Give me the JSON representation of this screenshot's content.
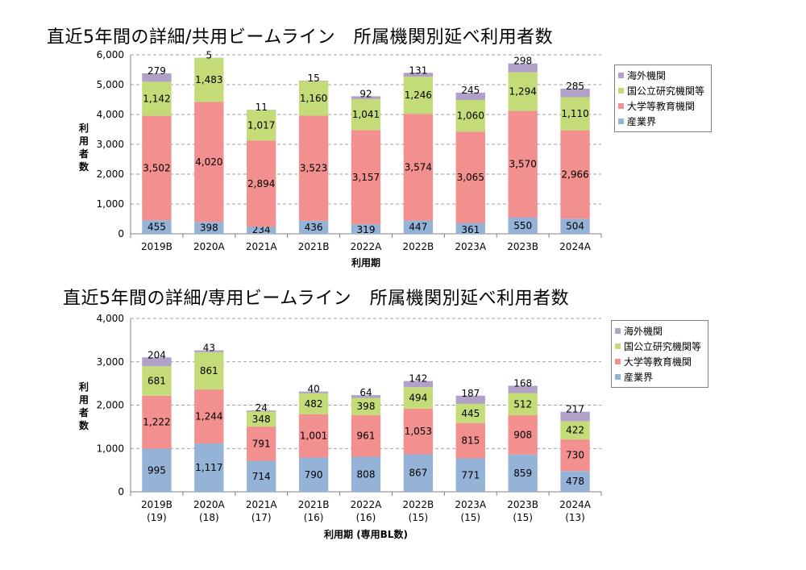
{
  "titles": [
    "直近5年間の詳細/共用ビームライン　所属機関別延べ利用者数",
    "直近5年間の詳細/専用ビームライン　所属機関別延べ利用者数"
  ],
  "colors": {
    "industry": "#95b3d7",
    "university": "#f28f8f",
    "national": "#c3dc78",
    "overseas": "#b1a0c7",
    "grid": "#808080"
  },
  "chart_data": [
    {
      "type": "bar",
      "stacked": true,
      "title": "直近5年間の詳細/共用ビームライン　所属機関別延べ利用者数",
      "xlabel": "利用期",
      "ylabel": "利用者数",
      "ylim": [
        0,
        6000
      ],
      "yticks": [
        "0",
        "1,000",
        "2,000",
        "3,000",
        "4,000",
        "5,000",
        "6,000"
      ],
      "grid": true,
      "legend_position": "right",
      "categories": [
        "2019B",
        "2020A",
        "2021A",
        "2021B",
        "2022A",
        "2022B",
        "2023A",
        "2023B",
        "2024A"
      ],
      "series": [
        {
          "name": "産業界",
          "key": "industry",
          "values": [
            455,
            398,
            234,
            436,
            319,
            447,
            361,
            550,
            504
          ],
          "labels": [
            "455",
            "398",
            "234",
            "436",
            "319",
            "447",
            "361",
            "550",
            "504"
          ]
        },
        {
          "name": "大学等教育機関",
          "key": "university",
          "values": [
            3502,
            4020,
            2894,
            3523,
            3157,
            3574,
            3065,
            3570,
            2966
          ],
          "labels": [
            "3,502",
            "4,020",
            "2,894",
            "3,523",
            "3,157",
            "3,574",
            "3,065",
            "3,570",
            "2,966"
          ]
        },
        {
          "name": "国公立研究機関等",
          "key": "national",
          "values": [
            1142,
            1483,
            1017,
            1160,
            1041,
            1246,
            1060,
            1294,
            1110
          ],
          "labels": [
            "1,142",
            "1,483",
            "1,017",
            "1,160",
            "1,041",
            "1,246",
            "1,060",
            "1,294",
            "1,110"
          ]
        },
        {
          "name": "海外機関",
          "key": "overseas",
          "values": [
            279,
            5,
            11,
            15,
            92,
            131,
            245,
            298,
            285
          ],
          "labels": [
            "279",
            "5",
            "11",
            "15",
            "92",
            "131",
            "245",
            "298",
            "285"
          ]
        }
      ]
    },
    {
      "type": "bar",
      "stacked": true,
      "title": "直近5年間の詳細/専用ビームライン　所属機関別延べ利用者数",
      "xlabel": "利用期 (専用BL数)",
      "ylabel": "利用者数",
      "ylim": [
        0,
        4000
      ],
      "yticks": [
        "0",
        "1,000",
        "2,000",
        "3,000",
        "4,000"
      ],
      "grid": true,
      "legend_position": "right",
      "categories": [
        "2019B",
        "2020A",
        "2021A",
        "2021B",
        "2022A",
        "2022B",
        "2023A",
        "2023B",
        "2024A"
      ],
      "sublabels": [
        "(19)",
        "(18)",
        "(17)",
        "(16)",
        "(16)",
        "(15)",
        "(15)",
        "(15)",
        "(13)"
      ],
      "series": [
        {
          "name": "産業界",
          "key": "industry",
          "values": [
            995,
            1117,
            714,
            790,
            808,
            867,
            771,
            859,
            478
          ],
          "labels": [
            "995",
            "1,117",
            "714",
            "790",
            "808",
            "867",
            "771",
            "859",
            "478"
          ]
        },
        {
          "name": "大学等教育機関",
          "key": "university",
          "values": [
            1222,
            1244,
            791,
            1001,
            961,
            1053,
            815,
            908,
            730
          ],
          "labels": [
            "1,222",
            "1,244",
            "791",
            "1,001",
            "961",
            "1,053",
            "815",
            "908",
            "730"
          ]
        },
        {
          "name": "国公立研究機関等",
          "key": "national",
          "values": [
            681,
            861,
            348,
            482,
            398,
            494,
            445,
            512,
            422
          ],
          "labels": [
            "681",
            "861",
            "348",
            "482",
            "398",
            "494",
            "445",
            "512",
            "422"
          ]
        },
        {
          "name": "海外機関",
          "key": "overseas",
          "values": [
            204,
            43,
            24,
            40,
            64,
            142,
            187,
            168,
            217
          ],
          "labels": [
            "204",
            "43",
            "24",
            "40",
            "64",
            "142",
            "187",
            "168",
            "217"
          ]
        }
      ]
    }
  ],
  "legend_order": [
    "海外機関",
    "国公立研究機関等",
    "大学等教育機関",
    "産業界"
  ]
}
